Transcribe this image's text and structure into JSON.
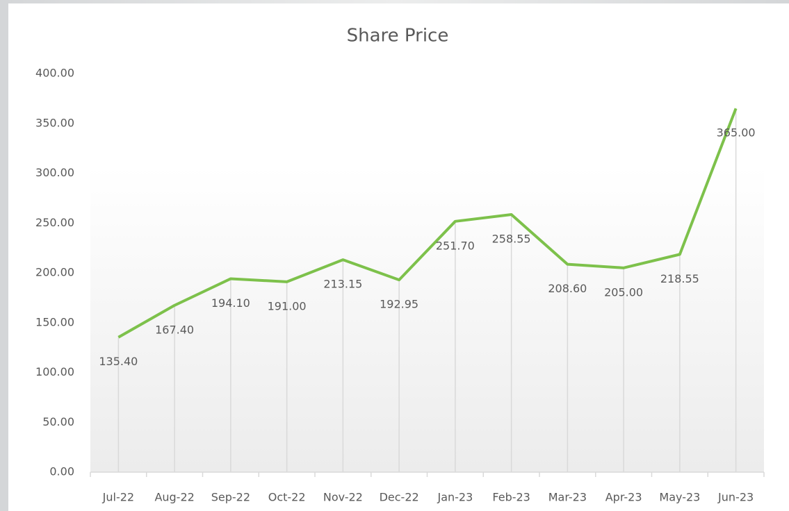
{
  "chart_data": {
    "type": "line",
    "title": "Share Price",
    "categories": [
      "Jul-22",
      "Aug-22",
      "Sep-22",
      "Oct-22",
      "Nov-22",
      "Dec-22",
      "Jan-23",
      "Feb-23",
      "Mar-23",
      "Apr-23",
      "May-23",
      "Jun-23"
    ],
    "series": [
      {
        "name": "Share Price",
        "color": "#7dc14b",
        "values": [
          135.4,
          167.4,
          194.1,
          191.0,
          213.15,
          192.95,
          251.7,
          258.55,
          208.6,
          205.0,
          218.55,
          365.0
        ],
        "value_labels": [
          "135.40",
          "167.40",
          "194.10",
          "191.00",
          "213.15",
          "192.95",
          "251.70",
          "258.55",
          "208.60",
          "205.00",
          "218.55",
          "365.00"
        ]
      }
    ],
    "ylim": [
      0,
      400
    ],
    "yticks": [
      {
        "value": 0,
        "label": "0.00"
      },
      {
        "value": 50,
        "label": "50.00"
      },
      {
        "value": 100,
        "label": "100.00"
      },
      {
        "value": 150,
        "label": "150.00"
      },
      {
        "value": 200,
        "label": "200.00"
      },
      {
        "value": 250,
        "label": "250.00"
      },
      {
        "value": 300,
        "label": "300.00"
      },
      {
        "value": 350,
        "label": "350.00"
      },
      {
        "value": 400,
        "label": "400.00"
      }
    ],
    "drop_lines": true
  }
}
